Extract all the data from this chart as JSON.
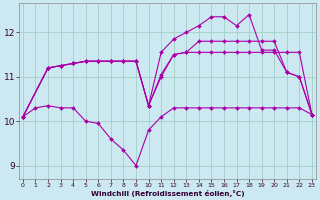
{
  "xlabel": "Windchill (Refroidissement éolien,°C)",
  "background_color": "#cce8f0",
  "grid_color": "#99ccbb",
  "line_color": "#aa00aa",
  "ylim": [
    8.7,
    12.65
  ],
  "xlim": [
    -0.3,
    23.3
  ],
  "yticks": [
    9,
    10,
    11,
    12
  ],
  "xticks": [
    0,
    1,
    2,
    3,
    4,
    5,
    6,
    7,
    8,
    9,
    10,
    11,
    12,
    13,
    14,
    15,
    16,
    17,
    18,
    19,
    20,
    21,
    22,
    23
  ],
  "s1_x": [
    0,
    1,
    2,
    3,
    4,
    5,
    6,
    7,
    8,
    9,
    10,
    11,
    12,
    13,
    14,
    15,
    16,
    17,
    18,
    19,
    20,
    21,
    22,
    23
  ],
  "s1_y": [
    10.1,
    10.3,
    10.35,
    10.3,
    10.3,
    10.0,
    9.95,
    9.6,
    9.35,
    9.0,
    9.8,
    10.1,
    10.3,
    10.3,
    10.3,
    10.3,
    10.3,
    10.3,
    10.3,
    10.3,
    10.3,
    10.3,
    10.3,
    10.15
  ],
  "s2_x": [
    0,
    2,
    3,
    4,
    5,
    6,
    7,
    8,
    9,
    10,
    11,
    12,
    13,
    14,
    15,
    16,
    17,
    18,
    19,
    20,
    21,
    22,
    23
  ],
  "s2_y": [
    10.1,
    11.2,
    11.25,
    11.3,
    11.35,
    11.35,
    11.35,
    11.35,
    11.35,
    10.35,
    11.05,
    11.5,
    11.55,
    11.8,
    11.8,
    11.8,
    11.8,
    11.8,
    11.8,
    11.8,
    11.1,
    11.0,
    10.15
  ],
  "s3_x": [
    0,
    2,
    3,
    4,
    5,
    6,
    7,
    8,
    9,
    10,
    11,
    12,
    13,
    14,
    15,
    16,
    17,
    18,
    19,
    20,
    21,
    22,
    23
  ],
  "s3_y": [
    10.1,
    11.2,
    11.25,
    11.3,
    11.35,
    11.35,
    11.35,
    11.35,
    11.35,
    10.35,
    11.0,
    11.5,
    11.55,
    11.55,
    11.55,
    11.55,
    11.55,
    11.55,
    11.55,
    11.55,
    11.55,
    11.55,
    10.15
  ],
  "s4_x": [
    0,
    2,
    3,
    4,
    5,
    6,
    7,
    8,
    9,
    10,
    11,
    12,
    13,
    14,
    15,
    16,
    17,
    18,
    19,
    20,
    21,
    22,
    23
  ],
  "s4_y": [
    10.1,
    11.2,
    11.25,
    11.3,
    11.35,
    11.35,
    11.35,
    11.35,
    11.35,
    10.35,
    11.55,
    11.85,
    12.0,
    12.15,
    12.35,
    12.35,
    12.15,
    12.4,
    11.6,
    11.6,
    11.1,
    11.0,
    10.15
  ]
}
